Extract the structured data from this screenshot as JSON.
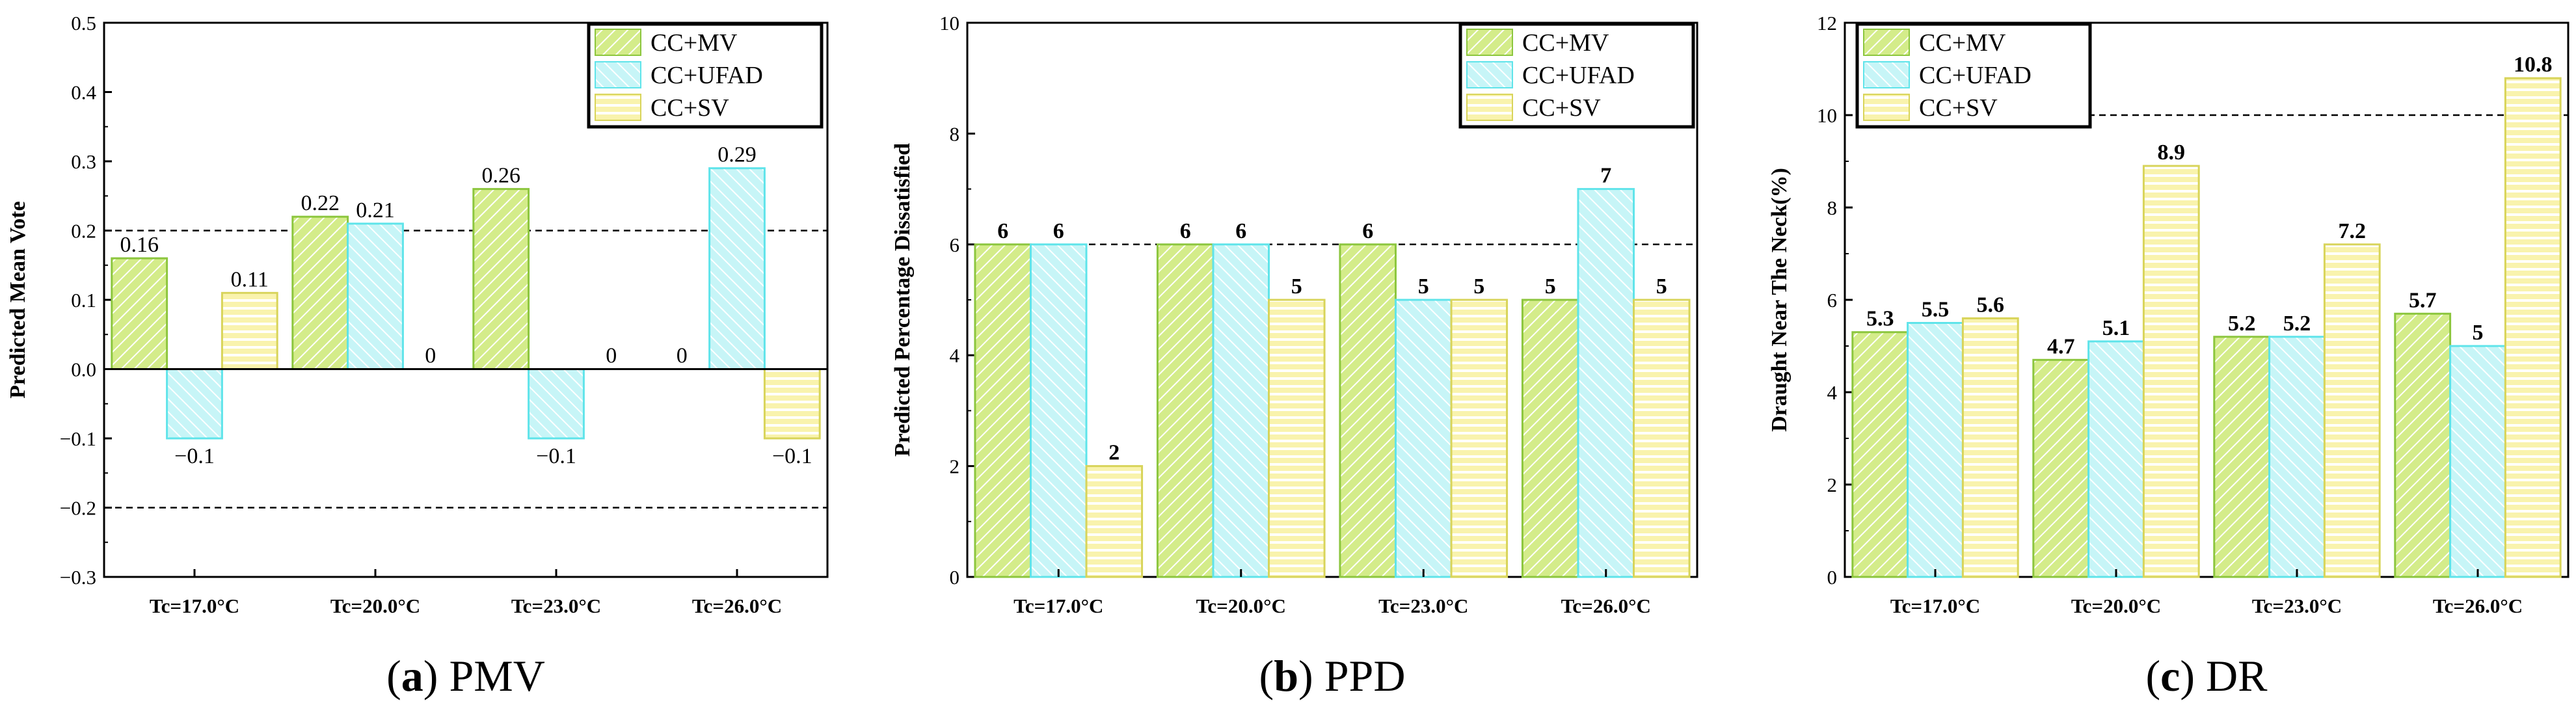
{
  "legend": [
    "CC+MV",
    "CC+UFAD",
    "CC+SV"
  ],
  "colors": {
    "mv_fill": "#d4ec8a",
    "mv_edge": "#8cc63e",
    "ufad_fill": "#c7f5f7",
    "ufad_edge": "#5fe4ea",
    "sv_fill": "#f9f3ad",
    "sv_edge": "#d8d45a"
  },
  "chart_data": [
    {
      "type": "bar",
      "caption_letter": "a",
      "caption_text": "PMV",
      "ylabel": "Predicted Mean Vote",
      "ylim": [
        -0.3,
        0.5
      ],
      "yticks": [
        "−0.3",
        "−0.2",
        "−0.1",
        "0.0",
        "0.1",
        "0.2",
        "0.3",
        "0.4",
        "0.5"
      ],
      "categories": [
        "Tc=17.0°C",
        "Tc=20.0°C",
        "Tc=23.0°C",
        "Tc=26.0°C"
      ],
      "series": [
        {
          "name": "CC+MV",
          "values": [
            0.16,
            0.22,
            0.26,
            0
          ]
        },
        {
          "name": "CC+UFAD",
          "values": [
            -0.1,
            0.21,
            -0.1,
            0.29
          ]
        },
        {
          "name": "CC+SV",
          "values": [
            0.11,
            0,
            0,
            -0.1
          ]
        }
      ],
      "data_labels": [
        [
          "0.16",
          "0.22",
          "0.26",
          "0"
        ],
        [
          "−0.1",
          "0.21",
          "−0.1",
          "0.29"
        ],
        [
          "0.11",
          "0",
          "0",
          "−0.1"
        ]
      ],
      "reference_lines": [
        0.2,
        -0.2
      ],
      "zero_line": true
    },
    {
      "type": "bar",
      "caption_letter": "b",
      "caption_text": "PPD",
      "ylabel": "Predicted Percentage Dissatisfied",
      "ylim": [
        0,
        10
      ],
      "yticks": [
        "0",
        "2",
        "4",
        "6",
        "8",
        "10"
      ],
      "categories": [
        "Tc=17.0°C",
        "Tc=20.0°C",
        "Tc=23.0°C",
        "Tc=26.0°C"
      ],
      "series": [
        {
          "name": "CC+MV",
          "values": [
            6,
            6,
            6,
            5
          ]
        },
        {
          "name": "CC+UFAD",
          "values": [
            6,
            6,
            5,
            7
          ]
        },
        {
          "name": "CC+SV",
          "values": [
            2,
            5,
            5,
            5
          ]
        }
      ],
      "data_labels": [
        [
          "6",
          "6",
          "6",
          "5"
        ],
        [
          "6",
          "6",
          "5",
          "7"
        ],
        [
          "2",
          "5",
          "5",
          "5"
        ]
      ],
      "reference_lines": [
        6
      ],
      "zero_line": false
    },
    {
      "type": "bar",
      "caption_letter": "c",
      "caption_text": "DR",
      "ylabel": "Draught Near The Neck(%)",
      "ylim": [
        0,
        12
      ],
      "yticks": [
        "0",
        "2",
        "4",
        "6",
        "8",
        "10",
        "12"
      ],
      "categories": [
        "Tc=17.0°C",
        "Tc=20.0°C",
        "Tc=23.0°C",
        "Tc=26.0°C"
      ],
      "series": [
        {
          "name": "CC+MV",
          "values": [
            5.3,
            4.7,
            5.2,
            5.7
          ]
        },
        {
          "name": "CC+UFAD",
          "values": [
            5.5,
            5.1,
            5.2,
            5
          ]
        },
        {
          "name": "CC+SV",
          "values": [
            5.6,
            8.9,
            7.2,
            10.8
          ]
        }
      ],
      "data_labels": [
        [
          "5.3",
          "4.7",
          "5.2",
          "5.7"
        ],
        [
          "5.5",
          "5.1",
          "5.2",
          "5"
        ],
        [
          "5.6",
          "8.9",
          "7.2",
          "10.8"
        ]
      ],
      "reference_lines": [
        10
      ],
      "zero_line": false
    }
  ]
}
